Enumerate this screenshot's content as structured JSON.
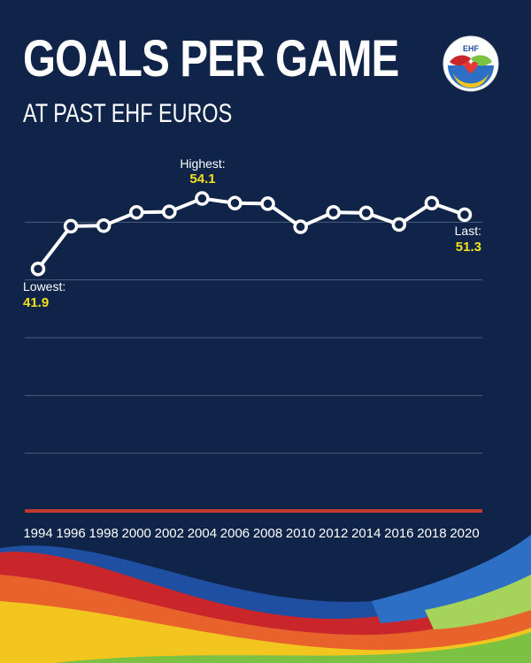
{
  "header": {
    "title": "GOALS PER GAME",
    "subtitle": "AT PAST EHF EUROS",
    "logo_text": "EHF"
  },
  "annotations": {
    "highest_label": "Highest:",
    "highest_value": "54.1",
    "lowest_label": "Lowest:",
    "lowest_value": "41.9",
    "last_label": "Last:",
    "last_value": "51.3"
  },
  "colors": {
    "background": "#0f2448",
    "line": "#ffffff",
    "highlight": "#f2e01e",
    "baseline": "#c0392b",
    "grid": "#4a5c7e"
  },
  "chart_data": {
    "type": "line",
    "x": [
      "1994",
      "1996",
      "1998",
      "2000",
      "2002",
      "2004",
      "2006",
      "2008",
      "2010",
      "2012",
      "2014",
      "2016",
      "2018",
      "2020"
    ],
    "series": [
      {
        "values": [
          41.9,
          49.3,
          49.4,
          51.7,
          51.8,
          54.1,
          53.3,
          53.2,
          49.2,
          51.7,
          51.6,
          49.6,
          53.3,
          51.3
        ]
      }
    ],
    "ylim": [
      0,
      60
    ],
    "grid": true
  }
}
